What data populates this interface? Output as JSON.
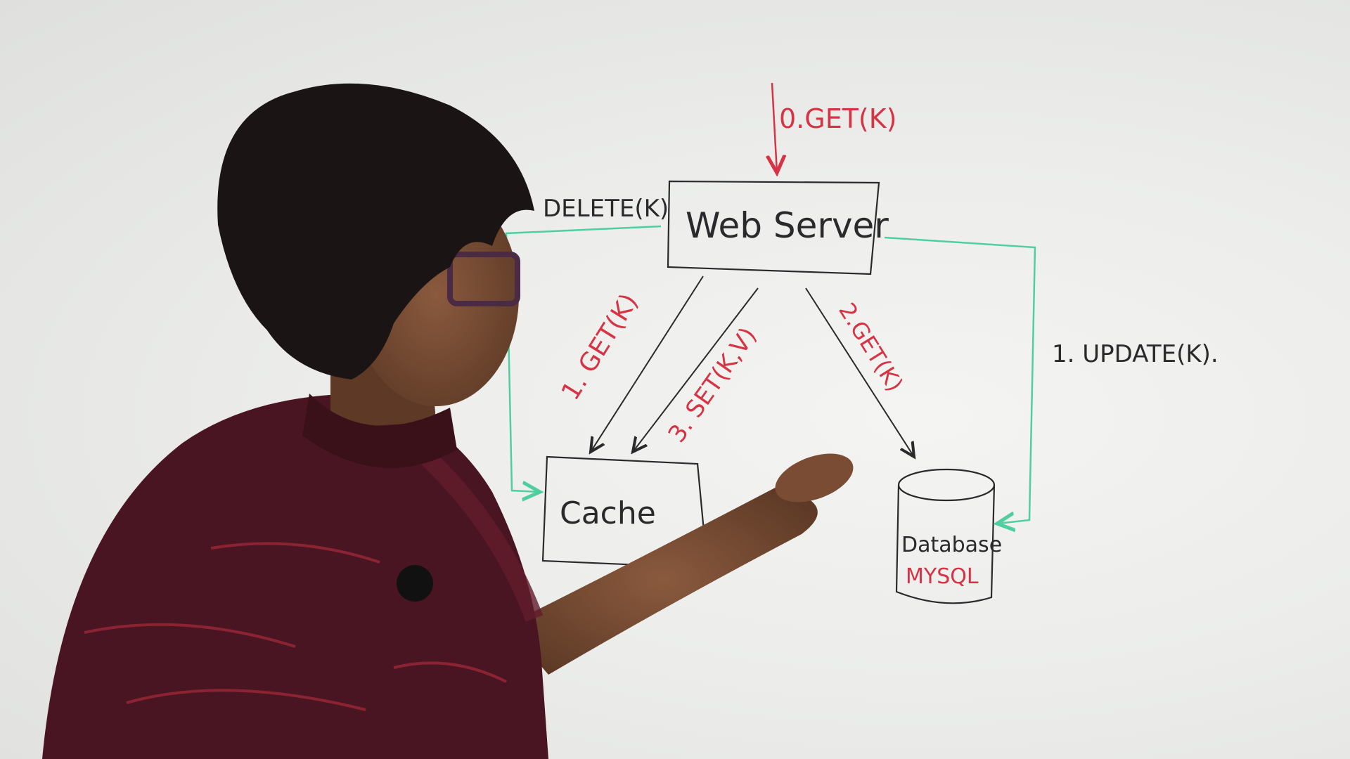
{
  "whiteboard": {
    "web_server_label": "Web Server",
    "cache_label": "Cache",
    "database_label": "Database",
    "database_engine_label": "MYSQL",
    "step_0_label": "0.GET(K)",
    "step_1_get_label": "1. GET(K)",
    "step_2_get_label": "2.GET(K)",
    "step_3_set_label": "3. SET(K,V)",
    "delete_label": "DELETE(K)",
    "update_label": "1. UPDATE(K)."
  },
  "colors": {
    "black_marker": "#2a2a2c",
    "red_marker": "#d63344",
    "green_marker": "#4fcf9f",
    "shirt": "#4a1522",
    "hair": "#1a1414"
  }
}
